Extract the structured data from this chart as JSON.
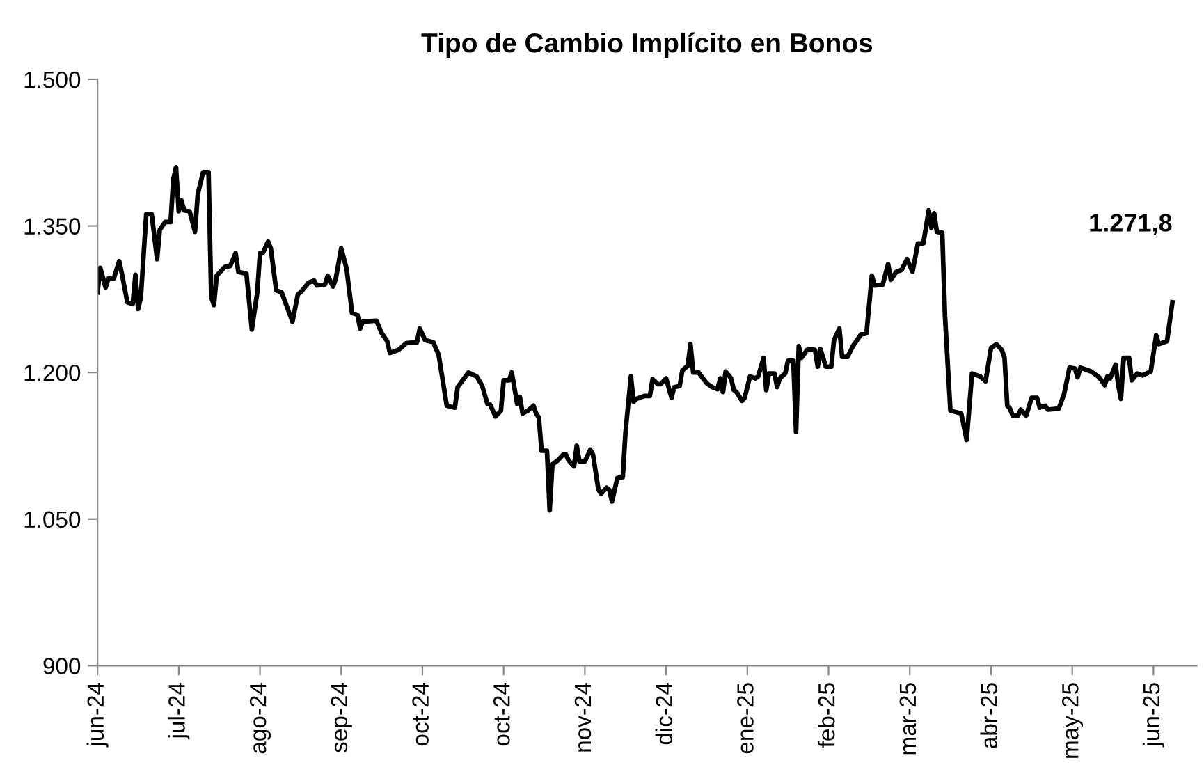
{
  "chart_data": {
    "type": "line",
    "title": "Tipo de Cambio Implícito en Bonos",
    "x": [
      "2024-06-03",
      "2024-06-04",
      "2024-06-06",
      "2024-06-07",
      "2024-06-09",
      "2024-06-11",
      "2024-06-12",
      "2024-06-14",
      "2024-06-16",
      "2024-06-17",
      "2024-06-18",
      "2024-06-19",
      "2024-06-21",
      "2024-06-23",
      "2024-06-25",
      "2024-06-26",
      "2024-06-28",
      "2024-06-30",
      "2024-07-01",
      "2024-07-02",
      "2024-07-03",
      "2024-07-04",
      "2024-07-05",
      "2024-07-07",
      "2024-07-09",
      "2024-07-10",
      "2024-07-12",
      "2024-07-14",
      "2024-07-15",
      "2024-07-16",
      "2024-07-17",
      "2024-07-20",
      "2024-07-22",
      "2024-07-24",
      "2024-07-25",
      "2024-07-28",
      "2024-07-30",
      "2024-08-01",
      "2024-08-02",
      "2024-08-03",
      "2024-08-05",
      "2024-08-06",
      "2024-08-08",
      "2024-08-10",
      "2024-08-14",
      "2024-08-16",
      "2024-08-17",
      "2024-08-20",
      "2024-08-22",
      "2024-08-23",
      "2024-08-26",
      "2024-08-27",
      "2024-08-29",
      "2024-08-30",
      "2024-09-01",
      "2024-09-03",
      "2024-09-05",
      "2024-09-07",
      "2024-09-08",
      "2024-09-09",
      "2024-09-14",
      "2024-09-16",
      "2024-09-18",
      "2024-09-19",
      "2024-09-22",
      "2024-09-23",
      "2024-09-25",
      "2024-09-29",
      "2024-09-30",
      "2024-10-02",
      "2024-10-05",
      "2024-10-07",
      "2024-10-10",
      "2024-10-13",
      "2024-10-14",
      "2024-10-18",
      "2024-10-21",
      "2024-10-23",
      "2024-10-25",
      "2024-10-26",
      "2024-10-28",
      "2024-10-30",
      "2024-10-31",
      "2024-11-02",
      "2024-11-03",
      "2024-11-05",
      "2024-11-06",
      "2024-11-07",
      "2024-11-09",
      "2024-11-11",
      "2024-11-12",
      "2024-11-13",
      "2024-11-14",
      "2024-11-16",
      "2024-11-17",
      "2024-11-18",
      "2024-11-20",
      "2024-11-22",
      "2024-11-23",
      "2024-11-24",
      "2024-11-26",
      "2024-11-27",
      "2024-11-28",
      "2024-11-30",
      "2024-12-02",
      "2024-12-03",
      "2024-12-05",
      "2024-12-06",
      "2024-12-08",
      "2024-12-09",
      "2024-12-10",
      "2024-12-12",
      "2024-12-14",
      "2024-12-15",
      "2024-12-17",
      "2024-12-18",
      "2024-12-19",
      "2024-12-22",
      "2024-12-24",
      "2024-12-25",
      "2024-12-27",
      "2024-12-28",
      "2024-12-30",
      "2025-01-01",
      "2025-01-02",
      "2025-01-04",
      "2025-01-05",
      "2025-01-07",
      "2025-01-08",
      "2025-01-09",
      "2025-01-11",
      "2025-01-14",
      "2025-01-16",
      "2025-01-18",
      "2025-01-19",
      "2025-01-20",
      "2025-01-21",
      "2025-01-23",
      "2025-01-24",
      "2025-01-25",
      "2025-01-27",
      "2025-01-28",
      "2025-01-30",
      "2025-02-01",
      "2025-02-02",
      "2025-02-04",
      "2025-02-05",
      "2025-02-06",
      "2025-02-08",
      "2025-02-09",
      "2025-02-10",
      "2025-02-12",
      "2025-02-13",
      "2025-02-15",
      "2025-02-16",
      "2025-02-17",
      "2025-02-18",
      "2025-02-20",
      "2025-02-22",
      "2025-02-23",
      "2025-02-24",
      "2025-02-25",
      "2025-02-27",
      "2025-03-01",
      "2025-03-02",
      "2025-03-04",
      "2025-03-05",
      "2025-03-07",
      "2025-03-09",
      "2025-03-12",
      "2025-03-14",
      "2025-03-16",
      "2025-03-17",
      "2025-03-20",
      "2025-03-22",
      "2025-03-23",
      "2025-03-25",
      "2025-03-27",
      "2025-03-29",
      "2025-03-31",
      "2025-04-02",
      "2025-04-04",
      "2025-04-06",
      "2025-04-07",
      "2025-04-08",
      "2025-04-09",
      "2025-04-11",
      "2025-04-12",
      "2025-04-14",
      "2025-04-18",
      "2025-04-20",
      "2025-04-22",
      "2025-04-25",
      "2025-04-27",
      "2025-04-29",
      "2025-05-01",
      "2025-05-03",
      "2025-05-04",
      "2025-05-05",
      "2025-05-06",
      "2025-05-07",
      "2025-05-09",
      "2025-05-10",
      "2025-05-12",
      "2025-05-14",
      "2025-05-16",
      "2025-05-17",
      "2025-05-19",
      "2025-05-20",
      "2025-05-24",
      "2025-05-26",
      "2025-05-28",
      "2025-05-30",
      "2025-05-31",
      "2025-06-01",
      "2025-06-05",
      "2025-06-08",
      "2025-06-10",
      "2025-06-11",
      "2025-06-12",
      "2025-06-14",
      "2025-06-15",
      "2025-06-16",
      "2025-06-17",
      "2025-06-19",
      "2025-06-20",
      "2025-06-22",
      "2025-06-24",
      "2025-06-27",
      "2025-06-29",
      "2025-06-30",
      "2025-07-02",
      "2025-07-03",
      "2025-07-05"
    ],
    "series": [
      {
        "color": "#000000",
        "values": [
          1282,
          1307,
          1287,
          1296,
          1296,
          1314,
          1301,
          1272,
          1270,
          1300,
          1265,
          1277,
          1362,
          1362,
          1316,
          1346,
          1354,
          1354,
          1398,
          1410,
          1365,
          1376,
          1366,
          1365,
          1344,
          1382,
          1405,
          1405,
          1277,
          1269,
          1299,
          1308,
          1309,
          1322,
          1303,
          1301,
          1244,
          1282,
          1322,
          1322,
          1334,
          1327,
          1284,
          1282,
          1252,
          1280,
          1282,
          1292,
          1294,
          1289,
          1290,
          1299,
          1288,
          1296,
          1327,
          1306,
          1261,
          1259,
          1245,
          1252,
          1253,
          1240,
          1232,
          1220,
          1223,
          1225,
          1230,
          1231,
          1245,
          1233,
          1231,
          1218,
          1166,
          1164,
          1185,
          1200,
          1196,
          1187,
          1168,
          1167,
          1155,
          1161,
          1192,
          1192,
          1200,
          1168,
          1175,
          1158,
          1161,
          1166,
          1158,
          1154,
          1120,
          1120,
          1059,
          1106,
          1110,
          1116,
          1116,
          1110,
          1104,
          1125,
          1109,
          1109,
          1121,
          1116,
          1080,
          1076,
          1082,
          1080,
          1068,
          1092,
          1093,
          1139,
          1196,
          1170,
          1173,
          1176,
          1176,
          1193,
          1188,
          1188,
          1194,
          1174,
          1185,
          1186,
          1202,
          1207,
          1229,
          1200,
          1200,
          1189,
          1185,
          1183,
          1194,
          1180,
          1201,
          1194,
          1182,
          1180,
          1171,
          1174,
          1196,
          1194,
          1196,
          1215,
          1182,
          1199,
          1199,
          1185,
          1194,
          1199,
          1212,
          1212,
          1139,
          1227,
          1215,
          1223,
          1224,
          1223,
          1206,
          1224,
          1206,
          1206,
          1233,
          1245,
          1216,
          1216,
          1227,
          1239,
          1240,
          1299,
          1289,
          1290,
          1311,
          1295,
          1303,
          1305,
          1316,
          1303,
          1332,
          1332,
          1366,
          1348,
          1363,
          1344,
          1343,
          1258,
          1161,
          1158,
          1131,
          1199,
          1196,
          1191,
          1225,
          1229,
          1223,
          1215,
          1166,
          1163,
          1156,
          1156,
          1162,
          1156,
          1174,
          1174,
          1164,
          1166,
          1162,
          1163,
          1178,
          1205,
          1204,
          1195,
          1205,
          1201,
          1195,
          1187,
          1196,
          1194,
          1208,
          1187,
          1173,
          1215,
          1215,
          1192,
          1199,
          1197,
          1201,
          1238,
          1229,
          1231,
          1232,
          1271.8
        ]
      }
    ],
    "xlim": [
      "2024-06-03",
      "2025-07-14"
    ],
    "xticks": [
      {
        "value": "2024-06-03",
        "label": "jun-24"
      },
      {
        "value": "2024-07-03",
        "label": "jul-24"
      },
      {
        "value": "2024-08-02",
        "label": "ago-24"
      },
      {
        "value": "2024-09-01",
        "label": "sep-24"
      },
      {
        "value": "2024-10-01",
        "label": "oct-24"
      },
      {
        "value": "2024-10-31",
        "label": "oct-24"
      },
      {
        "value": "2024-11-30",
        "label": "nov-24"
      },
      {
        "value": "2024-12-30",
        "label": "dic-24"
      },
      {
        "value": "2025-01-29",
        "label": "ene-25"
      },
      {
        "value": "2025-02-28",
        "label": "feb-25"
      },
      {
        "value": "2025-03-30",
        "label": "mar-25"
      },
      {
        "value": "2025-04-29",
        "label": "abr-25"
      },
      {
        "value": "2025-05-29",
        "label": "may-25"
      },
      {
        "value": "2025-06-28",
        "label": "jun-25"
      }
    ],
    "ylim": [
      900,
      1500
    ],
    "yticks": [
      {
        "value": 900,
        "label": "900"
      },
      {
        "value": 1050,
        "label": "1.050"
      },
      {
        "value": 1200,
        "label": "1.200"
      },
      {
        "value": 1350,
        "label": "1.350"
      },
      {
        "value": 1500,
        "label": "1.500"
      }
    ],
    "annotations": [
      {
        "text": "1.271,8",
        "x": "2025-07-05",
        "y": 1271.8
      }
    ],
    "grid": false,
    "marker": "none",
    "line_style": "solid"
  }
}
